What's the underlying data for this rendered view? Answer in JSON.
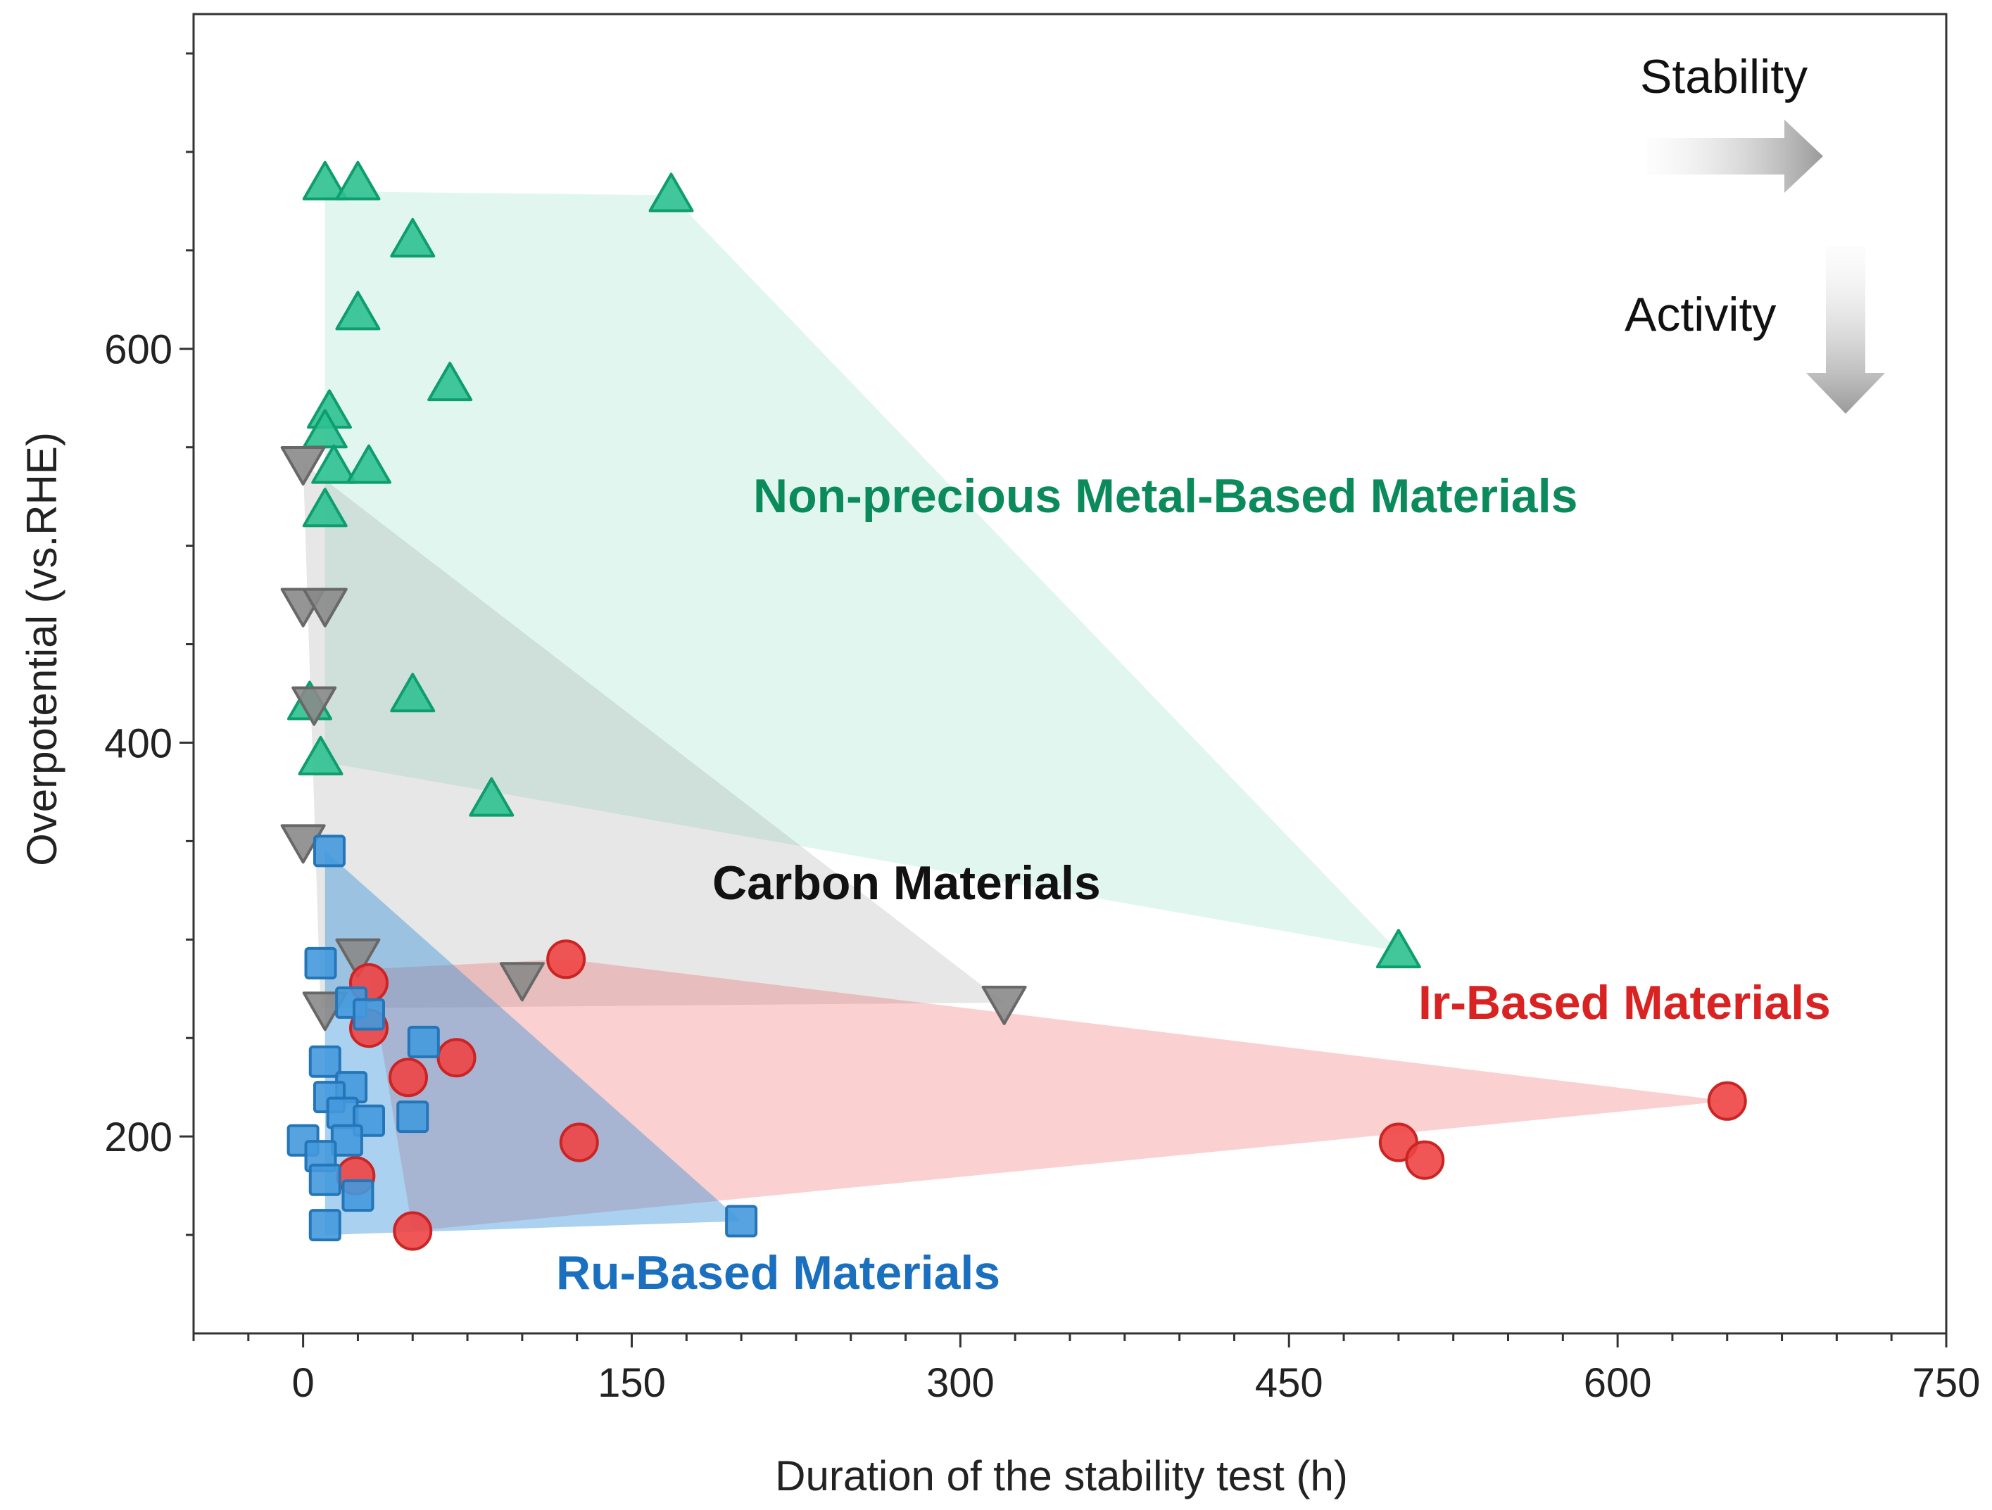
{
  "chart_data": {
    "type": "scatter",
    "title": "",
    "xlabel": "Duration of the stability test (h)",
    "ylabel": "Overpotential (vs.RHE)",
    "xlim": [
      -50,
      750
    ],
    "ylim": [
      100,
      770
    ],
    "xticks": [
      0,
      150,
      300,
      450,
      600,
      750
    ],
    "yticks": [
      200,
      400,
      600
    ],
    "hints": {
      "stability": "Stability",
      "activity": "Activity"
    },
    "series": [
      {
        "name": "Non-precious Metal-Based Materials",
        "color": "#10b981",
        "marker": "triangle-up",
        "hull": [
          [
            10,
            680
          ],
          [
            168,
            678
          ],
          [
            500,
            294
          ],
          [
            10,
            390
          ]
        ],
        "points": [
          [
            10,
            684
          ],
          [
            25,
            684
          ],
          [
            168,
            678
          ],
          [
            50,
            655
          ],
          [
            25,
            618
          ],
          [
            67,
            582
          ],
          [
            12,
            568
          ],
          [
            10,
            558
          ],
          [
            14,
            540
          ],
          [
            30,
            540
          ],
          [
            10,
            518
          ],
          [
            50,
            424
          ],
          [
            3,
            420
          ],
          [
            8,
            392
          ],
          [
            86,
            371
          ],
          [
            500,
            294
          ]
        ]
      },
      {
        "name": "Carbon Materials",
        "color": "#7a7a7a",
        "marker": "triangle-down",
        "hull": [
          [
            0,
            542
          ],
          [
            320,
            268
          ],
          [
            8,
            265
          ]
        ],
        "points": [
          [
            0,
            542
          ],
          [
            0,
            470
          ],
          [
            10,
            470
          ],
          [
            5,
            420
          ],
          [
            0,
            350
          ],
          [
            25,
            292
          ],
          [
            100,
            280
          ],
          [
            320,
            268
          ],
          [
            10,
            265
          ]
        ]
      },
      {
        "name": "Ir-Based Materials",
        "color": "#ee2a2a",
        "marker": "circle",
        "hull": [
          [
            30,
            285
          ],
          [
            120,
            290
          ],
          [
            650,
            218
          ],
          [
            50,
            152
          ]
        ],
        "points": [
          [
            120,
            290
          ],
          [
            30,
            278
          ],
          [
            30,
            255
          ],
          [
            70,
            240
          ],
          [
            48,
            230
          ],
          [
            650,
            218
          ],
          [
            126,
            197
          ],
          [
            500,
            197
          ],
          [
            512,
            188
          ],
          [
            24,
            180
          ],
          [
            50,
            152
          ]
        ]
      },
      {
        "name": "Ru-Based Materials",
        "color": "#2a8bd8",
        "marker": "square",
        "hull": [
          [
            10,
            345
          ],
          [
            200,
            157
          ],
          [
            10,
            150
          ]
        ],
        "points": [
          [
            12,
            345
          ],
          [
            8,
            288
          ],
          [
            22,
            268
          ],
          [
            30,
            262
          ],
          [
            55,
            248
          ],
          [
            10,
            238
          ],
          [
            22,
            225
          ],
          [
            12,
            220
          ],
          [
            18,
            212
          ],
          [
            50,
            210
          ],
          [
            30,
            208
          ],
          [
            0,
            198
          ],
          [
            20,
            198
          ],
          [
            8,
            190
          ],
          [
            10,
            178
          ],
          [
            25,
            170
          ],
          [
            10,
            155
          ],
          [
            200,
            157
          ]
        ]
      }
    ]
  }
}
